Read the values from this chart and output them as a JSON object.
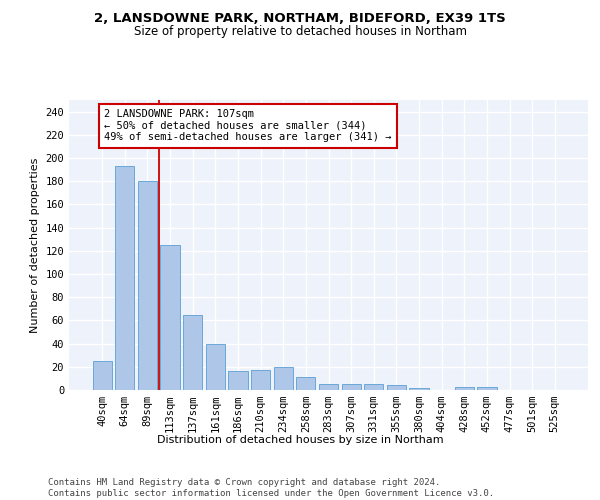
{
  "title1": "2, LANSDOWNE PARK, NORTHAM, BIDEFORD, EX39 1TS",
  "title2": "Size of property relative to detached houses in Northam",
  "xlabel": "Distribution of detached houses by size in Northam",
  "ylabel": "Number of detached properties",
  "categories": [
    "40sqm",
    "64sqm",
    "89sqm",
    "113sqm",
    "137sqm",
    "161sqm",
    "186sqm",
    "210sqm",
    "234sqm",
    "258sqm",
    "283sqm",
    "307sqm",
    "331sqm",
    "355sqm",
    "380sqm",
    "404sqm",
    "428sqm",
    "452sqm",
    "477sqm",
    "501sqm",
    "525sqm"
  ],
  "values": [
    25,
    193,
    180,
    125,
    65,
    40,
    16,
    17,
    20,
    11,
    5,
    5,
    5,
    4,
    2,
    0,
    3,
    3,
    0,
    0,
    0
  ],
  "bar_color": "#aec6e8",
  "bar_edge_color": "#5a9fd4",
  "vline_x": 2.5,
  "vline_color": "#cc0000",
  "annotation_text": "2 LANSDOWNE PARK: 107sqm\n← 50% of detached houses are smaller (344)\n49% of semi-detached houses are larger (341) →",
  "annotation_box_color": "#ffffff",
  "annotation_box_edge": "#cc0000",
  "ylim": [
    0,
    250
  ],
  "yticks": [
    0,
    20,
    40,
    60,
    80,
    100,
    120,
    140,
    160,
    180,
    200,
    220,
    240
  ],
  "footer": "Contains HM Land Registry data © Crown copyright and database right 2024.\nContains public sector information licensed under the Open Government Licence v3.0.",
  "bg_color": "#eef2fa",
  "grid_color": "#ffffff",
  "title1_fontsize": 9.5,
  "title2_fontsize": 8.5,
  "xlabel_fontsize": 8,
  "ylabel_fontsize": 8,
  "tick_fontsize": 7.5,
  "annotation_fontsize": 7.5,
  "footer_fontsize": 6.5
}
